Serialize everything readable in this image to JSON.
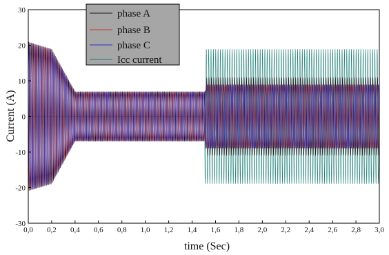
{
  "chart_data": {
    "type": "line",
    "title": "",
    "xlabel": "time (Sec)",
    "ylabel": "Current (A)",
    "xlim": [
      0.0,
      3.0
    ],
    "ylim": [
      -30,
      30
    ],
    "x_ticks": [
      "0,0",
      "0,2",
      "0,4",
      "0,6",
      "0,8",
      "1,0",
      "1,2",
      "1,4",
      "1,6",
      "1,8",
      "2,0",
      "2,2",
      "2,4",
      "2,6",
      "2,8",
      "3,0"
    ],
    "y_ticks": [
      "30",
      "20",
      "10",
      "0",
      "-10",
      "-20",
      "-30"
    ],
    "legend_position": "top",
    "legend_background": "#a6a6a6",
    "series": [
      {
        "name": "phase A",
        "color": "#1a1a1a",
        "phase_deg": 0,
        "envelope": [
          [
            0.0,
            21
          ],
          [
            0.2,
            19
          ],
          [
            0.3,
            13
          ],
          [
            0.4,
            7
          ],
          [
            1.51,
            7
          ],
          [
            1.52,
            11
          ],
          [
            3.0,
            11
          ]
        ]
      },
      {
        "name": "phase B",
        "color": "#c0392b",
        "phase_deg": 120,
        "envelope": [
          [
            0.0,
            21
          ],
          [
            0.2,
            19
          ],
          [
            0.3,
            13
          ],
          [
            0.4,
            7
          ],
          [
            1.51,
            7
          ],
          [
            1.52,
            9
          ],
          [
            3.0,
            9
          ]
        ]
      },
      {
        "name": "phase C",
        "color": "#2b2fd0",
        "phase_deg": 240,
        "envelope": [
          [
            0.0,
            21
          ],
          [
            0.2,
            19
          ],
          [
            0.3,
            13
          ],
          [
            0.4,
            7
          ],
          [
            1.51,
            7
          ],
          [
            1.52,
            9
          ],
          [
            3.0,
            9
          ]
        ]
      },
      {
        "name": "Icc current",
        "color": "#1f7f78",
        "phase_deg": 60,
        "envelope": [
          [
            0.0,
            0
          ],
          [
            1.5,
            0
          ],
          [
            1.51,
            19
          ],
          [
            3.0,
            19
          ]
        ]
      }
    ]
  }
}
